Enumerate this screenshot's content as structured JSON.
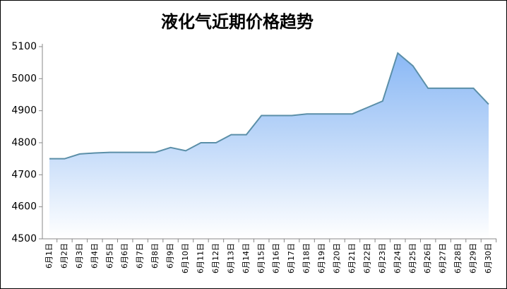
{
  "chart_data": {
    "type": "area",
    "title": "液化气近期价格趋势",
    "categories": [
      "6月1日",
      "6月2日",
      "6月3日",
      "6月4日",
      "6月5日",
      "6月6日",
      "6月7日",
      "6月8日",
      "6月9日",
      "6月10日",
      "6月11日",
      "6月12日",
      "6月13日",
      "6月14日",
      "6月15日",
      "6月16日",
      "6月17日",
      "6月18日",
      "6月19日",
      "6月20日",
      "6月21日",
      "6月22日",
      "6月23日",
      "6月24日",
      "6月25日",
      "6月26日",
      "6月27日",
      "6月28日",
      "6月29日",
      "6月30日"
    ],
    "values": [
      4750,
      4750,
      4765,
      4768,
      4770,
      4770,
      4770,
      4770,
      4785,
      4775,
      4800,
      4800,
      4825,
      4825,
      4885,
      4885,
      4885,
      4890,
      4890,
      4890,
      4890,
      4910,
      4930,
      5080,
      5040,
      4970,
      4970,
      4970,
      4970,
      4920
    ],
    "color": "#5b8fa8",
    "ylim": [
      4500,
      5100
    ],
    "yticks": [
      4500,
      4600,
      4700,
      4800,
      4900,
      5000,
      5100
    ]
  }
}
